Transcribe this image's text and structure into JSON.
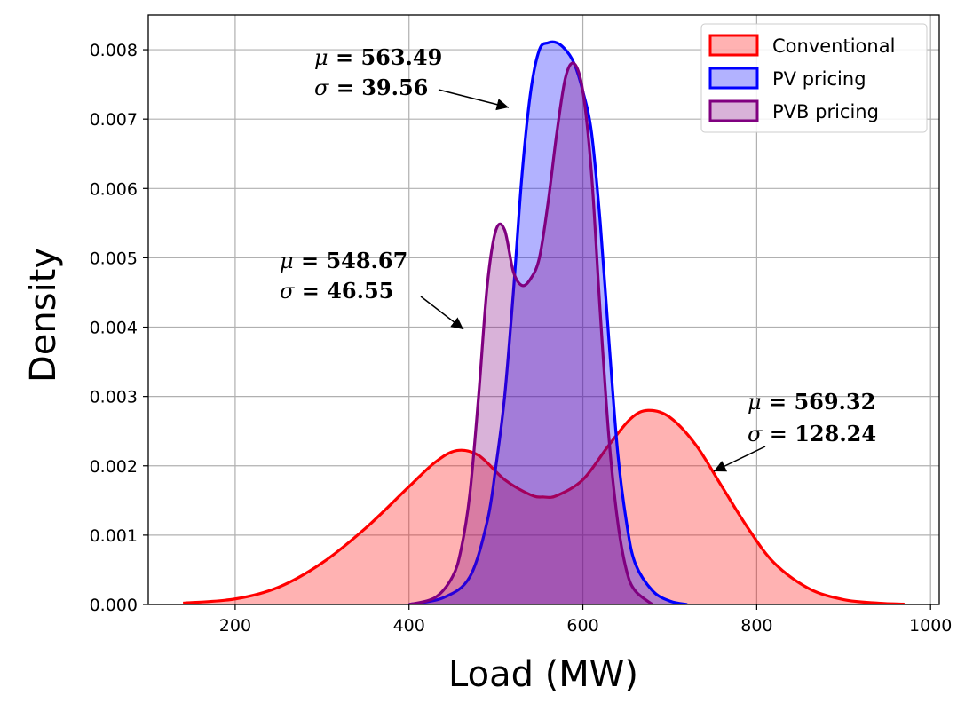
{
  "chart_data": {
    "type": "area",
    "title": "",
    "xlabel": "Load (MW)",
    "ylabel": "Density",
    "xlim": [
      100,
      1010
    ],
    "ylim": [
      0,
      0.0085
    ],
    "grid": true,
    "legend_position": "top-right",
    "x_ticks": [
      "200",
      "400",
      "600",
      "800",
      "1000"
    ],
    "x_tick_values": [
      200,
      400,
      600,
      800,
      1000
    ],
    "y_ticks": [
      "0.000",
      "0.001",
      "0.002",
      "0.003",
      "0.004",
      "0.005",
      "0.006",
      "0.007",
      "0.008"
    ],
    "y_tick_values": [
      0,
      0.001,
      0.002,
      0.003,
      0.004,
      0.005,
      0.006,
      0.007,
      0.008
    ],
    "series": [
      {
        "name": "Conventional",
        "line_color": "#ff0000",
        "fill_color": "#ff0000",
        "fill_opacity": 0.3,
        "x": [
          140,
          200,
          250,
          300,
          350,
          400,
          430,
          455,
          480,
          510,
          540,
          555,
          570,
          600,
          630,
          655,
          675,
          700,
          730,
          760,
          790,
          820,
          860,
          900,
          940,
          970
        ],
        "y": [
          2e-05,
          8e-05,
          0.00025,
          0.0006,
          0.0011,
          0.0017,
          0.00205,
          0.00222,
          0.00215,
          0.0018,
          0.00158,
          0.00155,
          0.00157,
          0.0018,
          0.0023,
          0.00268,
          0.0028,
          0.0027,
          0.0023,
          0.0017,
          0.0011,
          0.0006,
          0.00023,
          7e-05,
          2e-05,
          5e-06
        ],
        "annotation": [
          "$\\mu = 569.32$",
          "$\\sigma = 128.24$"
        ],
        "annotation_arrow_target": [
          750,
          0.0019
        ]
      },
      {
        "name": "PV pricing",
        "line_color": "#0000ff",
        "fill_color": "#0000ff",
        "fill_opacity": 0.3,
        "x": [
          400,
          440,
          470,
          490,
          500,
          510,
          520,
          530,
          540,
          550,
          560,
          570,
          580,
          590,
          600,
          610,
          620,
          630,
          640,
          650,
          660,
          680,
          700,
          720
        ],
        "y": [
          0,
          0.0001,
          0.0004,
          0.0012,
          0.002,
          0.003,
          0.0045,
          0.0062,
          0.0074,
          0.008,
          0.0081,
          0.0081,
          0.008,
          0.0078,
          0.0074,
          0.0068,
          0.0055,
          0.0038,
          0.0022,
          0.0012,
          0.0006,
          0.0002,
          5e-05,
          0
        ],
        "annotation": [
          "$\\mu = 563.49$",
          "$\\sigma = 39.56$"
        ],
        "annotation_arrow_target": [
          512,
          0.0071
        ]
      },
      {
        "name": "PVB pricing",
        "line_color": "#800080",
        "fill_color": "#800080",
        "fill_opacity": 0.3,
        "x": [
          400,
          430,
          450,
          460,
          470,
          480,
          490,
          500,
          510,
          520,
          530,
          540,
          550,
          560,
          570,
          580,
          590,
          600,
          610,
          620,
          630,
          640,
          650,
          660,
          680
        ],
        "y": [
          0,
          0.0001,
          0.0004,
          0.0008,
          0.0016,
          0.003,
          0.0046,
          0.0054,
          0.0054,
          0.0048,
          0.0046,
          0.0047,
          0.005,
          0.0058,
          0.0068,
          0.0076,
          0.0078,
          0.0074,
          0.0062,
          0.0042,
          0.0024,
          0.0012,
          0.0005,
          0.0002,
          0
        ],
        "annotation": [
          "$\\mu = 548.67$",
          "$\\sigma = 46.55$"
        ],
        "annotation_arrow_target": [
          463,
          0.0039
        ]
      }
    ],
    "annotations_display": [
      {
        "series": "PV pricing",
        "mu": "563.49",
        "sigma": "39.56"
      },
      {
        "series": "PVB pricing",
        "mu": "548.67",
        "sigma": "46.55"
      },
      {
        "series": "Conventional",
        "mu": "569.32",
        "sigma": "128.24"
      }
    ]
  },
  "legend": {
    "items": [
      "Conventional",
      "PV pricing",
      "PVB pricing"
    ]
  }
}
